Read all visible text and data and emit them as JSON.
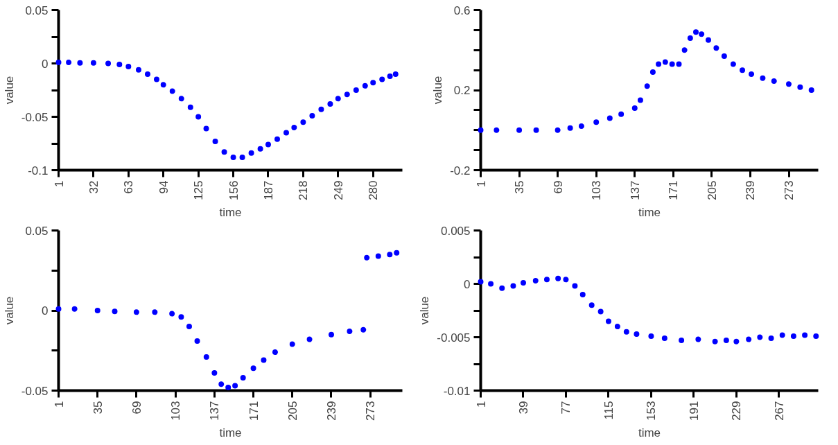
{
  "chart_data": [
    {
      "type": "scatter",
      "xlabel": "time",
      "ylabel": "value",
      "color": "#0000ff",
      "marker": "circle",
      "grid": false,
      "xlim": [
        1,
        306
      ],
      "ylim": [
        -0.1,
        0.05
      ],
      "xticks": [
        1,
        32,
        63,
        94,
        125,
        156,
        187,
        218,
        249,
        280
      ],
      "yticks": [
        0.05,
        {
          "value": 0.025,
          "label": null
        },
        0,
        {
          "value": -0.025,
          "label": null
        },
        -0.05,
        {
          "value": -0.075,
          "label": null
        },
        -0.1
      ],
      "x": [
        1,
        10,
        20,
        32,
        45,
        55,
        63,
        72,
        80,
        88,
        94,
        102,
        110,
        118,
        125,
        132,
        140,
        148,
        156,
        164,
        172,
        180,
        187,
        195,
        203,
        210,
        218,
        226,
        234,
        242,
        249,
        257,
        265,
        273,
        280,
        288,
        295,
        300
      ],
      "values": [
        0.001,
        0.001,
        0.0005,
        0.0005,
        0.0,
        -0.001,
        -0.003,
        -0.006,
        -0.01,
        -0.015,
        -0.02,
        -0.026,
        -0.033,
        -0.041,
        -0.05,
        -0.061,
        -0.073,
        -0.083,
        -0.088,
        -0.088,
        -0.084,
        -0.08,
        -0.076,
        -0.071,
        -0.065,
        -0.06,
        -0.055,
        -0.049,
        -0.043,
        -0.038,
        -0.033,
        -0.029,
        -0.025,
        -0.021,
        -0.018,
        -0.015,
        -0.012,
        -0.01
      ]
    },
    {
      "type": "scatter",
      "xlabel": "time",
      "ylabel": "value",
      "color": "#0000ff",
      "marker": "circle",
      "grid": false,
      "xlim": [
        1,
        299
      ],
      "ylim": [
        -0.2,
        0.6
      ],
      "xticks": [
        1,
        35,
        69,
        103,
        137,
        171,
        205,
        239,
        273
      ],
      "yticks": [
        0.6,
        {
          "value": 0.5,
          "label": null
        },
        {
          "value": 0.4,
          "label": null
        },
        {
          "value": 0.3,
          "label": null
        },
        0.2,
        {
          "value": 0.1,
          "label": null
        },
        {
          "value": 0,
          "label": null
        },
        {
          "value": -0.1,
          "label": null
        },
        -0.2
      ],
      "x": [
        1,
        15,
        35,
        50,
        69,
        80,
        90,
        103,
        115,
        125,
        137,
        142,
        148,
        153,
        158,
        164,
        170,
        176,
        181,
        186,
        191,
        196,
        202,
        209,
        216,
        224,
        232,
        240,
        250,
        260,
        273,
        283,
        293
      ],
      "values": [
        0.0,
        0.0,
        0.0,
        0.0,
        0.0,
        0.01,
        0.02,
        0.04,
        0.06,
        0.08,
        0.11,
        0.15,
        0.22,
        0.29,
        0.33,
        0.34,
        0.33,
        0.33,
        0.4,
        0.46,
        0.49,
        0.48,
        0.45,
        0.41,
        0.37,
        0.33,
        0.3,
        0.28,
        0.26,
        0.245,
        0.23,
        0.215,
        0.2
      ]
    },
    {
      "type": "scatter",
      "xlabel": "time",
      "ylabel": "value",
      "color": "#0000ff",
      "marker": "circle",
      "grid": false,
      "xlim": [
        1,
        301
      ],
      "ylim": [
        -0.05,
        0.05
      ],
      "xticks": [
        1,
        35,
        69,
        103,
        137,
        171,
        205,
        239,
        273
      ],
      "yticks": [
        0.05,
        {
          "value": 0.025,
          "label": null
        },
        0,
        {
          "value": -0.025,
          "label": null
        },
        -0.05
      ],
      "x": [
        1,
        15,
        35,
        50,
        69,
        85,
        100,
        108,
        115,
        122,
        130,
        137,
        143,
        149,
        155,
        162,
        171,
        180,
        190,
        205,
        220,
        239,
        255,
        267,
        270,
        280,
        290,
        296
      ],
      "values": [
        0.001,
        0.001,
        0.0,
        -0.0005,
        -0.001,
        -0.001,
        -0.002,
        -0.004,
        -0.01,
        -0.019,
        -0.029,
        -0.039,
        -0.046,
        -0.048,
        -0.047,
        -0.042,
        -0.036,
        -0.031,
        -0.026,
        -0.021,
        -0.018,
        -0.015,
        -0.013,
        -0.012,
        0.033,
        0.034,
        0.035,
        0.036
      ]
    },
    {
      "type": "scatter",
      "xlabel": "time",
      "ylabel": "value",
      "color": "#0000ff",
      "marker": "circle",
      "grid": false,
      "xlim": [
        1,
        302
      ],
      "ylim": [
        -0.01,
        0.005
      ],
      "xticks": [
        1,
        39,
        77,
        115,
        153,
        191,
        229,
        267
      ],
      "yticks": [
        0.005,
        {
          "value": 0.0025,
          "label": null
        },
        0,
        {
          "value": -0.0025,
          "label": null
        },
        -0.005,
        {
          "value": -0.0075,
          "label": null
        },
        -0.01
      ],
      "x": [
        1,
        10,
        20,
        30,
        39,
        50,
        60,
        70,
        77,
        85,
        92,
        100,
        108,
        115,
        123,
        131,
        140,
        153,
        165,
        180,
        195,
        210,
        220,
        229,
        240,
        250,
        260,
        270,
        280,
        290,
        300
      ],
      "values": [
        0.0002,
        0.0,
        -0.0004,
        -0.0002,
        0.0001,
        0.0003,
        0.0004,
        0.0005,
        0.0004,
        -0.0002,
        -0.001,
        -0.002,
        -0.0026,
        -0.0035,
        -0.004,
        -0.0045,
        -0.0047,
        -0.0049,
        -0.0051,
        -0.0053,
        -0.0052,
        -0.0054,
        -0.0053,
        -0.0054,
        -0.0052,
        -0.005,
        -0.0051,
        -0.0048,
        -0.0049,
        -0.0048,
        -0.0049
      ]
    }
  ]
}
